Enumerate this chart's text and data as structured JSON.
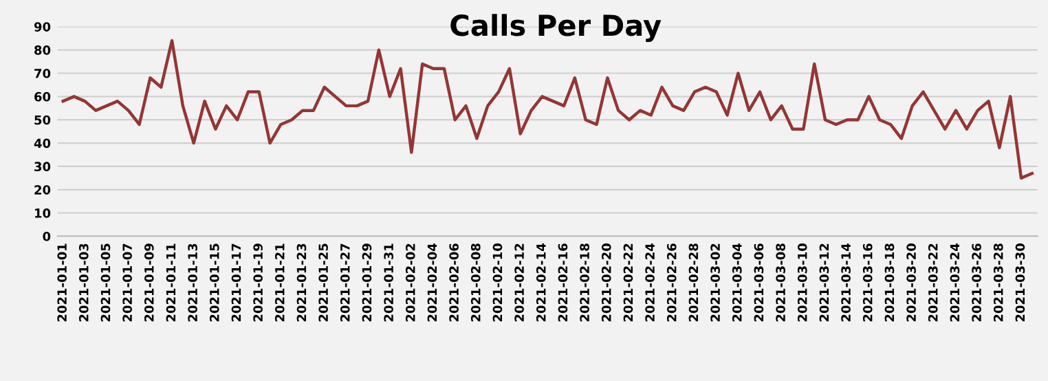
{
  "chart_data": {
    "type": "line",
    "title": "Calls Per Day",
    "categories": [
      "2021-01-01",
      null,
      "2021-01-03",
      null,
      "2021-01-05",
      null,
      "2021-01-07",
      null,
      "2021-01-09",
      null,
      "2021-01-11",
      null,
      "2021-01-13",
      null,
      "2021-01-15",
      null,
      "2021-01-17",
      null,
      "2021-01-19",
      null,
      "2021-01-21",
      null,
      "2021-01-23",
      null,
      "2021-01-25",
      null,
      "2021-01-27",
      null,
      "2021-01-29",
      null,
      "2021-01-31",
      null,
      "2021-02-02",
      null,
      "2021-02-04",
      null,
      "2021-02-06",
      null,
      "2021-02-08",
      null,
      "2021-02-10",
      null,
      "2021-02-12",
      null,
      "2021-02-14",
      null,
      "2021-02-16",
      null,
      "2021-02-18",
      null,
      "2021-02-20",
      null,
      "2021-02-22",
      null,
      "2021-02-24",
      null,
      "2021-02-26",
      null,
      "2021-02-28",
      null,
      "2021-03-02",
      null,
      "2021-03-04",
      null,
      "2021-03-06",
      null,
      "2021-03-08",
      null,
      "2021-03-10",
      null,
      "2021-03-12",
      null,
      "2021-03-14",
      null,
      "2021-03-16",
      null,
      "2021-03-18",
      null,
      "2021-03-20",
      null,
      "2021-03-22",
      null,
      "2021-03-24",
      null,
      "2021-03-26",
      null,
      "2021-03-28",
      null,
      "2021-03-30",
      null
    ],
    "series": [
      {
        "color": "#943634",
        "values": [
          58,
          60,
          58,
          54,
          56,
          58,
          54,
          48,
          68,
          64,
          84,
          56,
          40,
          58,
          46,
          56,
          50,
          62,
          62,
          40,
          48,
          50,
          54,
          54,
          64,
          60,
          56,
          56,
          58,
          80,
          60,
          72,
          36,
          74,
          72,
          72,
          50,
          56,
          42,
          56,
          62,
          72,
          44,
          54,
          60,
          58,
          56,
          68,
          50,
          48,
          68,
          54,
          50,
          54,
          52,
          64,
          56,
          54,
          62,
          64,
          62,
          52,
          70,
          54,
          62,
          50,
          56,
          46,
          46,
          74,
          50,
          48,
          50,
          50,
          60,
          50,
          48,
          42,
          56,
          62,
          54,
          46,
          54,
          46,
          54,
          58,
          38,
          60,
          25,
          27
        ]
      }
    ],
    "ylim": [
      0,
      90
    ],
    "yticks": [
      0,
      10,
      20,
      30,
      40,
      50,
      60,
      70,
      80,
      90
    ],
    "grid": "y",
    "legend": false,
    "marker": "none",
    "line_style": "solid"
  }
}
